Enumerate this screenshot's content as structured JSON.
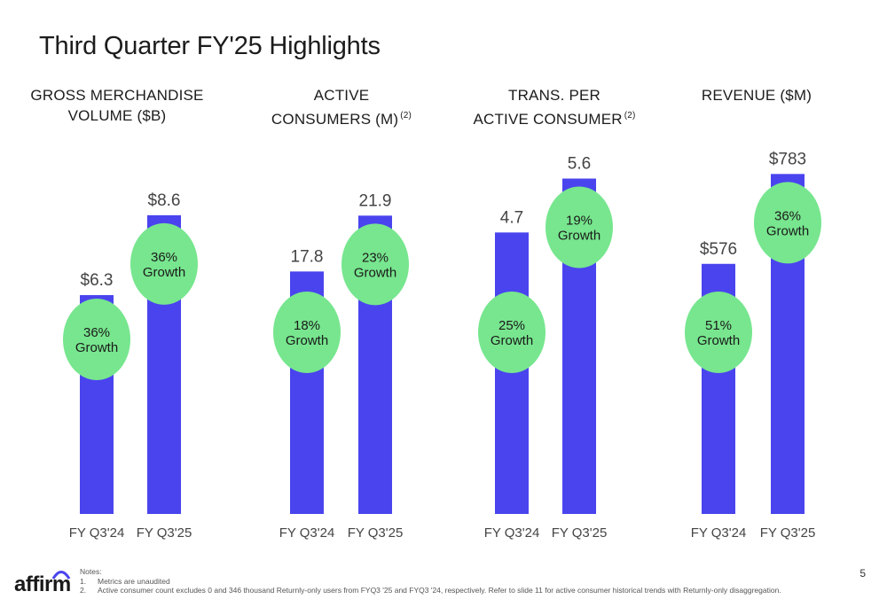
{
  "slide": {
    "title": "Third Quarter FY'25 Highlights",
    "page_number": "5"
  },
  "panels": [
    {
      "title_lines": [
        "GROSS MERCHANDISE",
        "VOLUME ($B)"
      ],
      "footnote": ""
    },
    {
      "title_lines": [
        "ACTIVE",
        "CONSUMERS (M)"
      ],
      "footnote": "(2)"
    },
    {
      "title_lines": [
        "TRANS. PER",
        "ACTIVE CONSUMER"
      ],
      "footnote": "(2)"
    },
    {
      "title_lines": [
        "",
        "REVENUE ($M)"
      ],
      "footnote": ""
    }
  ],
  "chart_data": [
    {
      "type": "bar",
      "title": "GROSS MERCHANDISE VOLUME ($B)",
      "categories": [
        "FY Q3'24",
        "FY Q3'25"
      ],
      "values": [
        6.3,
        8.6
      ],
      "value_labels": [
        "$6.3",
        "$8.6"
      ],
      "growth_labels": [
        "36%\nGrowth",
        "36%\nGrowth"
      ],
      "ylim": [
        0,
        10
      ]
    },
    {
      "type": "bar",
      "title": "ACTIVE CONSUMERS (M)",
      "categories": [
        "FY Q3'24",
        "FY Q3'25"
      ],
      "values": [
        17.8,
        21.9
      ],
      "value_labels": [
        "17.8",
        "21.9"
      ],
      "growth_labels": [
        "18%\nGrowth",
        "23%\nGrowth"
      ],
      "ylim": [
        0,
        25.5
      ]
    },
    {
      "type": "bar",
      "title": "TRANS. PER ACTIVE CONSUMER",
      "categories": [
        "FY Q3'24",
        "FY Q3'25"
      ],
      "values": [
        4.7,
        5.6
      ],
      "value_labels": [
        "4.7",
        "5.6"
      ],
      "growth_labels": [
        "25%\nGrowth",
        "19%\nGrowth"
      ],
      "ylim": [
        0,
        5.8
      ]
    },
    {
      "type": "bar",
      "title": "REVENUE ($M)",
      "categories": [
        "FY Q3'24",
        "FY Q3'25"
      ],
      "values": [
        576,
        783
      ],
      "value_labels": [
        "$576",
        "$783"
      ],
      "growth_labels": [
        "51%\nGrowth",
        "36%\nGrowth"
      ],
      "ylim": [
        0,
        800
      ]
    }
  ],
  "colors": {
    "bar": "#4a44ee",
    "growth_bubble": "#77e68e",
    "text": "#1c1c1c",
    "muted": "#555555"
  },
  "notes": {
    "heading": "Notes:",
    "items": [
      {
        "num": "1.",
        "text": "Metrics are unaudited"
      },
      {
        "num": "2.",
        "text": "Active consumer count excludes 0 and 346 thousand Returnly-only users from FYQ3 '25 and FYQ3 '24, respectively. Refer to slide 11 for active consumer historical trends with Returnly-only disaggregation."
      }
    ]
  },
  "logo": {
    "text": "affirm",
    "icon": "affirm-arc-icon"
  }
}
